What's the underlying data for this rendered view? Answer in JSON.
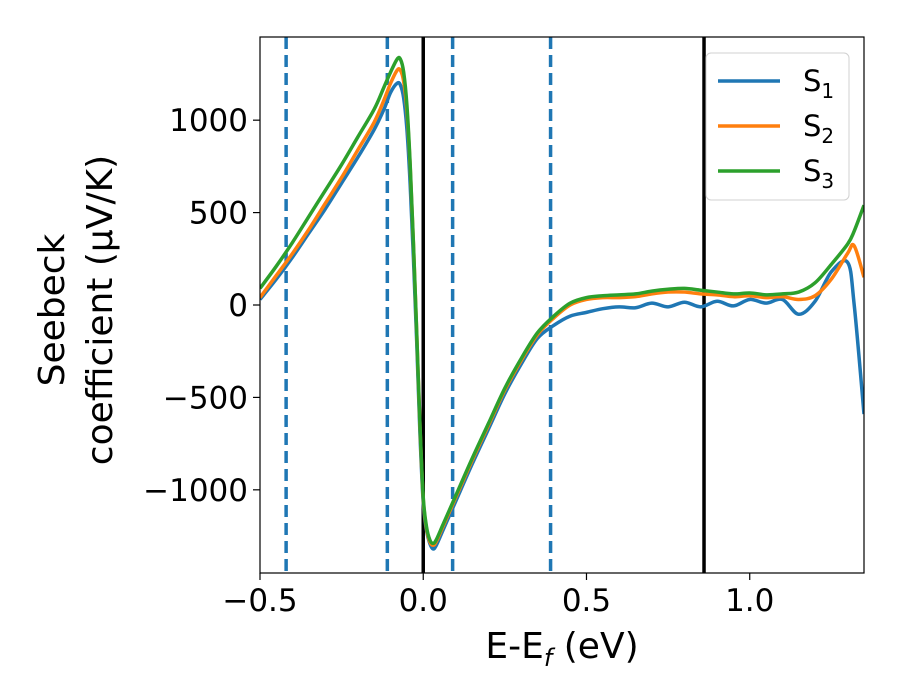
{
  "chart_data": {
    "type": "line",
    "xlabel": "E-E",
    "xlabel_sub": "f",
    "xlabel_unit": " (eV)",
    "ylabel_line1": "Seebeck",
    "ylabel_line2": "coefficient  (μV/K)",
    "xlim": [
      -0.5,
      1.35
    ],
    "ylim": [
      -1450,
      1450
    ],
    "x_ticks": [
      -0.5,
      0.0,
      0.5,
      1.0
    ],
    "x_tick_labels": [
      "−0.5",
      "0.0",
      "0.5",
      "1.0"
    ],
    "y_ticks": [
      1000,
      500,
      0,
      -500,
      -1000
    ],
    "y_tick_labels": [
      "1000",
      "500",
      "0",
      "−500",
      "−1000"
    ],
    "grid": false,
    "legend_position": "top-right",
    "vlines_dashed": [
      -0.42,
      -0.11,
      0.09,
      0.39
    ],
    "vlines_solid": [
      0.0,
      0.86
    ],
    "dashed_color": "#1f77b4",
    "solid_color": "#000000",
    "series": [
      {
        "name": "S",
        "sub": "1",
        "color": "#1f77b4",
        "x": [
          -0.5,
          -0.45,
          -0.4,
          -0.35,
          -0.3,
          -0.25,
          -0.2,
          -0.15,
          -0.12,
          -0.1,
          -0.08,
          -0.07,
          -0.06,
          -0.05,
          -0.04,
          -0.03,
          -0.02,
          -0.01,
          0.0,
          0.01,
          0.02,
          0.03,
          0.04,
          0.06,
          0.08,
          0.1,
          0.15,
          0.2,
          0.25,
          0.3,
          0.35,
          0.4,
          0.45,
          0.5,
          0.55,
          0.6,
          0.65,
          0.7,
          0.75,
          0.8,
          0.85,
          0.9,
          0.95,
          1.0,
          1.05,
          1.1,
          1.15,
          1.2,
          1.25,
          1.3,
          1.32,
          1.35
        ],
        "y": [
          30,
          140,
          260,
          390,
          520,
          660,
          800,
          950,
          1060,
          1150,
          1200,
          1190,
          1120,
          950,
          650,
          250,
          -200,
          -700,
          -1070,
          -1220,
          -1290,
          -1320,
          -1300,
          -1220,
          -1140,
          -1060,
          -860,
          -670,
          -480,
          -320,
          -180,
          -110,
          -60,
          -40,
          -20,
          -10,
          -15,
          10,
          -10,
          15,
          -10,
          20,
          -5,
          30,
          10,
          30,
          -50,
          20,
          180,
          230,
          0,
          -590
        ]
      },
      {
        "name": "S",
        "sub": "2",
        "color": "#ff7f0e",
        "x": [
          -0.5,
          -0.45,
          -0.4,
          -0.35,
          -0.3,
          -0.25,
          -0.2,
          -0.15,
          -0.12,
          -0.1,
          -0.08,
          -0.07,
          -0.06,
          -0.05,
          -0.04,
          -0.03,
          -0.02,
          -0.01,
          0.0,
          0.01,
          0.02,
          0.03,
          0.04,
          0.06,
          0.08,
          0.1,
          0.15,
          0.2,
          0.25,
          0.3,
          0.35,
          0.4,
          0.45,
          0.5,
          0.55,
          0.6,
          0.65,
          0.7,
          0.75,
          0.8,
          0.85,
          0.9,
          0.95,
          1.0,
          1.05,
          1.1,
          1.15,
          1.2,
          1.25,
          1.3,
          1.32,
          1.35
        ],
        "y": [
          40,
          160,
          280,
          410,
          550,
          690,
          840,
          990,
          1110,
          1200,
          1270,
          1270,
          1210,
          1050,
          750,
          330,
          -150,
          -660,
          -1050,
          -1210,
          -1280,
          -1300,
          -1280,
          -1200,
          -1120,
          -1040,
          -840,
          -650,
          -460,
          -300,
          -160,
          -70,
          0,
          30,
          40,
          40,
          45,
          60,
          70,
          70,
          60,
          55,
          45,
          50,
          40,
          45,
          30,
          50,
          140,
          280,
          320,
          150
        ]
      },
      {
        "name": "S",
        "sub": "3",
        "color": "#2ca02c",
        "x": [
          -0.5,
          -0.45,
          -0.4,
          -0.35,
          -0.3,
          -0.25,
          -0.2,
          -0.15,
          -0.12,
          -0.1,
          -0.08,
          -0.07,
          -0.06,
          -0.05,
          -0.04,
          -0.03,
          -0.02,
          -0.01,
          0.0,
          0.01,
          0.02,
          0.03,
          0.04,
          0.06,
          0.08,
          0.1,
          0.15,
          0.2,
          0.25,
          0.3,
          0.35,
          0.4,
          0.45,
          0.5,
          0.55,
          0.6,
          0.65,
          0.7,
          0.75,
          0.8,
          0.85,
          0.9,
          0.95,
          1.0,
          1.05,
          1.1,
          1.15,
          1.2,
          1.25,
          1.3,
          1.32,
          1.35
        ],
        "y": [
          90,
          210,
          340,
          480,
          620,
          760,
          910,
          1060,
          1180,
          1260,
          1330,
          1330,
          1260,
          1080,
          760,
          330,
          -150,
          -650,
          -1040,
          -1200,
          -1270,
          -1290,
          -1270,
          -1190,
          -1110,
          -1030,
          -830,
          -640,
          -450,
          -290,
          -150,
          -60,
          10,
          40,
          50,
          55,
          60,
          75,
          85,
          90,
          80,
          70,
          60,
          65,
          55,
          60,
          70,
          120,
          220,
          330,
          400,
          540
        ]
      }
    ]
  }
}
